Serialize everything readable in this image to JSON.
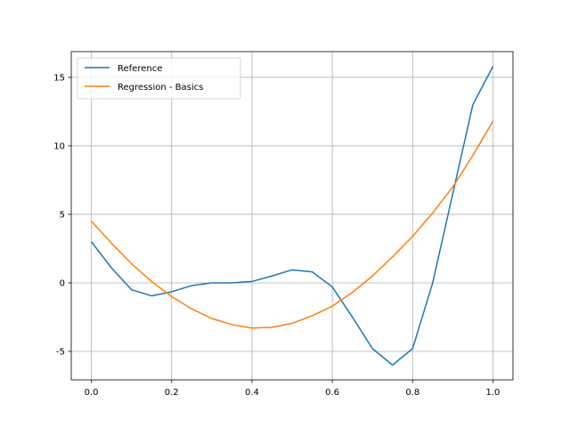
{
  "chart_data": {
    "type": "line",
    "x": [
      0,
      0.05,
      0.1,
      0.15,
      0.2,
      0.25,
      0.3,
      0.35,
      0.4,
      0.45,
      0.5,
      0.55,
      0.6,
      0.65,
      0.7,
      0.75,
      0.8,
      0.85,
      0.9,
      0.95,
      1.0
    ],
    "series": [
      {
        "name": "Reference",
        "color": "#1f77b4",
        "values": [
          3.0,
          1.1,
          -0.5,
          -0.95,
          -0.65,
          -0.2,
          0.0,
          0.0,
          0.1,
          0.5,
          0.95,
          0.8,
          -0.3,
          -2.5,
          -4.8,
          -6.0,
          -4.8,
          0.0,
          6.5,
          13.0,
          15.8
        ]
      },
      {
        "name": "Regression - Basics",
        "color": "#ff7f0e",
        "values": [
          4.5,
          2.9,
          1.4,
          0.1,
          -1.0,
          -1.9,
          -2.6,
          -3.05,
          -3.3,
          -3.25,
          -2.95,
          -2.4,
          -1.7,
          -0.7,
          0.5,
          1.9,
          3.4,
          5.1,
          7.0,
          9.3,
          11.8
        ]
      }
    ],
    "xlim": [
      -0.05,
      1.05
    ],
    "ylim": [
      -7.08,
      16.88
    ],
    "xticks": [
      {
        "value": 0,
        "label": "0.0"
      },
      0.2,
      0.4,
      0.6,
      0.8,
      {
        "value": 1,
        "label": "1.0"
      }
    ],
    "yticks": [
      -5,
      0,
      5,
      10,
      15
    ],
    "grid": true,
    "legend": "upper left"
  }
}
